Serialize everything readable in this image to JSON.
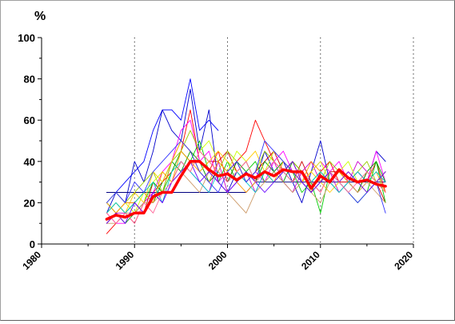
{
  "chart_data": {
    "type": "line",
    "ylabel": "%",
    "xlim": [
      1980,
      2020
    ],
    "ylim": [
      0,
      100
    ],
    "x_ticks": [
      1980,
      1990,
      2000,
      2010,
      2020
    ],
    "y_ticks": [
      0,
      20,
      40,
      60,
      80,
      100
    ],
    "vertical_gridlines_at": [
      1990,
      2000,
      2010,
      2020
    ],
    "grid": "vertical-dotted",
    "legend": "none",
    "series": [
      {
        "color": "#0000ff",
        "x": [
          1987,
          1988,
          1989,
          1990,
          1991,
          1992,
          1993,
          1994,
          1995,
          1996,
          1997,
          1998,
          1999
        ],
        "values": [
          25,
          25,
          30,
          35,
          40,
          55,
          65,
          65,
          60,
          80,
          55,
          60,
          55
        ]
      },
      {
        "color": "#0000cc",
        "x": [
          1987,
          1988,
          1989,
          1990,
          1991,
          1992,
          1993,
          1994,
          1995,
          1996,
          1997,
          1998,
          1999,
          2000,
          2001,
          2002,
          2003,
          2004,
          2005,
          2006,
          2007,
          2008,
          2009,
          2010,
          2011,
          2012,
          2013,
          2014,
          2015,
          2016,
          2017
        ],
        "values": [
          15,
          25,
          20,
          40,
          30,
          45,
          65,
          55,
          50,
          75,
          45,
          65,
          30,
          25,
          35,
          40,
          30,
          45,
          35,
          40,
          30,
          20,
          35,
          50,
          30,
          25,
          30,
          35,
          30,
          45,
          40
        ]
      },
      {
        "color": "#000080",
        "x": [
          1987,
          1988,
          1989,
          1990,
          1991,
          1992,
          1993,
          1994,
          1995,
          1996,
          1997,
          1998,
          1999,
          2000,
          2001,
          2002,
          2003,
          2004,
          2005,
          2006,
          2007,
          2008,
          2009,
          2010,
          2011,
          2012,
          2013,
          2014,
          2015,
          2016,
          2017
        ],
        "values": [
          25,
          25,
          25,
          25,
          25,
          25,
          25,
          25,
          25,
          25,
          25,
          25,
          25,
          25,
          25,
          25,
          30,
          30,
          30,
          30,
          30,
          30,
          30,
          30,
          30,
          30,
          30,
          30,
          30,
          30,
          30
        ]
      },
      {
        "color": "#ff0000",
        "x": [
          1987,
          1988,
          1989,
          1990,
          1991,
          1992,
          1993,
          1994,
          1995,
          1996,
          1997,
          1998,
          1999,
          2000,
          2001,
          2002,
          2003,
          2004,
          2005,
          2006,
          2007,
          2008,
          2009,
          2010,
          2011,
          2012,
          2013,
          2014,
          2015,
          2016,
          2017
        ],
        "values": [
          5,
          10,
          15,
          10,
          20,
          25,
          30,
          35,
          45,
          65,
          40,
          35,
          45,
          30,
          40,
          45,
          60,
          50,
          40,
          35,
          40,
          30,
          25,
          35,
          40,
          30,
          30,
          35,
          30,
          40,
          25
        ]
      },
      {
        "color": "#cc0000",
        "x": [
          1987,
          1988,
          1989,
          1990,
          1991,
          1992,
          1993,
          1994,
          1995,
          1996,
          1997,
          1998,
          1999,
          2000,
          2001,
          2002,
          2003,
          2004,
          2005,
          2006,
          2007,
          2008,
          2009,
          2010,
          2011,
          2012,
          2013,
          2014,
          2015,
          2016,
          2017
        ],
        "values": [
          10,
          15,
          20,
          20,
          15,
          30,
          25,
          40,
          50,
          45,
          35,
          40,
          40,
          45,
          35,
          30,
          35,
          40,
          45,
          35,
          30,
          40,
          30,
          25,
          35,
          35,
          30,
          25,
          35,
          30,
          20
        ]
      },
      {
        "color": "#ff00ff",
        "x": [
          1987,
          1988,
          1989,
          1990,
          1991,
          1992,
          1993,
          1994,
          1995,
          1996,
          1997,
          1998,
          1999,
          2000,
          2001,
          2002,
          2003,
          2004,
          2005,
          2006,
          2007,
          2008,
          2009,
          2010,
          2011,
          2012,
          2013,
          2014,
          2015,
          2016,
          2017
        ],
        "values": [
          15,
          10,
          10,
          15,
          20,
          25,
          35,
          40,
          55,
          60,
          40,
          45,
          30,
          35,
          40,
          30,
          35,
          30,
          40,
          45,
          35,
          30,
          35,
          40,
          35,
          40,
          30,
          35,
          30,
          45,
          30
        ]
      },
      {
        "color": "#cc00cc",
        "x": [
          1987,
          1988,
          1989,
          1990,
          1991,
          1992,
          1993,
          1994,
          1995,
          1996,
          1997,
          1998,
          1999,
          2000,
          2001,
          2002,
          2003,
          2004,
          2005,
          2006,
          2007,
          2008,
          2009,
          2010,
          2011,
          2012,
          2013,
          2014,
          2015,
          2016,
          2017
        ],
        "values": [
          10,
          15,
          15,
          20,
          15,
          25,
          20,
          30,
          40,
          35,
          30,
          25,
          40,
          25,
          30,
          35,
          25,
          35,
          40,
          30,
          25,
          35,
          40,
          30,
          35,
          25,
          30,
          40,
          35,
          30,
          35
        ]
      },
      {
        "color": "#00cc00",
        "x": [
          1987,
          1988,
          1989,
          1990,
          1991,
          1992,
          1993,
          1994,
          1995,
          1996,
          1997,
          1998,
          1999,
          2000,
          2001,
          2002,
          2003,
          2004,
          2005,
          2006,
          2007,
          2008,
          2009,
          2010,
          2011,
          2012,
          2013,
          2014,
          2015,
          2016,
          2017
        ],
        "values": [
          20,
          15,
          10,
          15,
          20,
          30,
          25,
          35,
          45,
          40,
          50,
          35,
          30,
          40,
          30,
          35,
          40,
          30,
          35,
          40,
          35,
          25,
          30,
          15,
          35,
          30,
          25,
          20,
          25,
          40,
          20
        ]
      },
      {
        "color": "#009900",
        "x": [
          1987,
          1988,
          1989,
          1990,
          1991,
          1992,
          1993,
          1994,
          1995,
          1996,
          1997,
          1998,
          1999,
          2000,
          2001,
          2002,
          2003,
          2004,
          2005,
          2006,
          2007,
          2008,
          2009,
          2010,
          2011,
          2012,
          2013,
          2014,
          2015,
          2016,
          2017
        ],
        "values": [
          15,
          20,
          15,
          20,
          25,
          20,
          30,
          40,
          35,
          45,
          40,
          30,
          35,
          30,
          40,
          35,
          30,
          40,
          35,
          30,
          40,
          35,
          30,
          35,
          30,
          35,
          30,
          25,
          35,
          40,
          30
        ]
      },
      {
        "color": "#99cc00",
        "x": [
          1987,
          1988,
          1989,
          1990,
          1991,
          1992,
          1993,
          1994,
          1995,
          1996,
          1997,
          1998,
          1999,
          2000,
          2001,
          2002,
          2003,
          2004,
          2005,
          2006,
          2007,
          2008,
          2009,
          2010,
          2011,
          2012,
          2013,
          2014,
          2015,
          2016,
          2017
        ],
        "values": [
          20,
          25,
          20,
          25,
          30,
          35,
          25,
          40,
          45,
          55,
          45,
          40,
          35,
          45,
          40,
          30,
          35,
          45,
          40,
          35,
          40,
          35,
          25,
          30,
          40,
          35,
          30,
          35,
          40,
          30,
          35
        ]
      },
      {
        "color": "#ccff00",
        "x": [
          1987,
          1988,
          1989,
          1990,
          1991,
          1992,
          1993,
          1994,
          1995,
          1996,
          1997,
          1998,
          1999,
          2000,
          2001,
          2002,
          2003,
          2004,
          2005,
          2006,
          2007,
          2008,
          2009,
          2010,
          2011,
          2012,
          2013,
          2014,
          2015,
          2016,
          2017
        ],
        "values": [
          10,
          15,
          20,
          15,
          25,
          30,
          35,
          30,
          40,
          35,
          45,
          50,
          40,
          35,
          45,
          40,
          30,
          35,
          45,
          40,
          35,
          30,
          35,
          40,
          30,
          35,
          40,
          30,
          35,
          30,
          25
        ]
      },
      {
        "color": "#ffcc00",
        "x": [
          1987,
          1988,
          1989,
          1990,
          1991,
          1992,
          1993,
          1994,
          1995,
          1996,
          1997,
          1998,
          1999,
          2000,
          2001,
          2002,
          2003,
          2004,
          2005,
          2006,
          2007,
          2008,
          2009,
          2010,
          2011,
          2012,
          2013,
          2014,
          2015,
          2016,
          2017
        ],
        "values": [
          15,
          20,
          15,
          25,
          20,
          35,
          30,
          40,
          50,
          45,
          35,
          40,
          45,
          40,
          35,
          40,
          45,
          35,
          30,
          35,
          40,
          30,
          35,
          30,
          25,
          30,
          35,
          30,
          25,
          30,
          35
        ]
      },
      {
        "color": "#ff9900",
        "x": [
          1987,
          1988,
          1989,
          1990,
          1991,
          1992,
          1993,
          1994,
          1995,
          1996,
          1997,
          1998,
          1999,
          2000,
          2001,
          2002,
          2003,
          2004,
          2005,
          2006,
          2007,
          2008,
          2009,
          2010,
          2011,
          2012,
          2013,
          2014,
          2015,
          2016,
          2017
        ],
        "values": [
          20,
          15,
          20,
          20,
          25,
          20,
          35,
          30,
          45,
          40,
          35,
          30,
          40,
          35,
          30,
          25,
          30,
          35,
          30,
          40,
          35,
          30,
          40,
          35,
          30,
          35,
          30,
          25,
          30,
          35,
          25
        ]
      },
      {
        "color": "#cc9966",
        "x": [
          1987,
          1988,
          1989,
          1990,
          1991,
          1992,
          1993,
          1994,
          1995,
          1996,
          1997,
          1998,
          1999,
          2000,
          2001,
          2002,
          2003,
          2004,
          2005,
          2006,
          2007,
          2008,
          2009,
          2010,
          2011,
          2012,
          2013,
          2014,
          2015,
          2016,
          2017
        ],
        "values": [
          10,
          10,
          15,
          15,
          20,
          20,
          25,
          30,
          35,
          30,
          25,
          35,
          30,
          25,
          20,
          15,
          25,
          30,
          35,
          30,
          25,
          30,
          25,
          20,
          30,
          25,
          30,
          25,
          30,
          25,
          20
        ]
      },
      {
        "color": "#00cccc",
        "x": [
          1987,
          1988,
          1989,
          1990,
          1991,
          1992,
          1993,
          1994,
          1995,
          1996,
          1997,
          1998,
          1999,
          2000,
          2001,
          2002,
          2003,
          2004,
          2005,
          2006,
          2007,
          2008,
          2009,
          2010,
          2011,
          2012,
          2013,
          2014,
          2015,
          2016,
          2017
        ],
        "values": [
          15,
          20,
          15,
          20,
          25,
          30,
          20,
          35,
          40,
          35,
          30,
          25,
          35,
          30,
          35,
          30,
          25,
          35,
          30,
          35,
          30,
          35,
          30,
          35,
          30,
          25,
          30,
          35,
          30,
          35,
          30
        ]
      },
      {
        "color": "#3333ff",
        "x": [
          1987,
          1988,
          1989,
          1990,
          1991,
          1992,
          1993,
          1994,
          1995,
          1996,
          1997,
          1998,
          1999,
          2000,
          2001,
          2002,
          2003,
          2004,
          2005,
          2006,
          2007,
          2008,
          2009,
          2010,
          2011,
          2012,
          2013,
          2014,
          2015,
          2016,
          2017
        ],
        "values": [
          20,
          25,
          20,
          30,
          25,
          35,
          40,
          45,
          50,
          45,
          35,
          30,
          25,
          35,
          40,
          30,
          35,
          50,
          45,
          40,
          35,
          30,
          25,
          30,
          35,
          30,
          25,
          20,
          25,
          30,
          15
        ]
      },
      {
        "color": "#6600ff",
        "x": [
          1987,
          1988,
          1989,
          1990,
          1991,
          1992,
          1993,
          1994,
          1995,
          1996,
          1997,
          1998,
          1999,
          2000,
          2001,
          2002,
          2003,
          2004,
          2005,
          2006,
          2007,
          2008,
          2009,
          2010,
          2011,
          2012,
          2013,
          2014,
          2015,
          2016,
          2017
        ],
        "values": [
          10,
          15,
          10,
          20,
          15,
          25,
          20,
          30,
          35,
          40,
          30,
          35,
          30,
          25,
          30,
          35,
          30,
          25,
          30,
          35,
          40,
          30,
          25,
          30,
          35,
          30,
          35,
          30,
          25,
          30,
          35
        ]
      },
      {
        "color": "#ff6699",
        "x": [
          1987,
          1988,
          1989,
          1990,
          1991,
          1992,
          1993,
          1994,
          1995,
          1996,
          1997,
          1998,
          1999,
          2000,
          2001,
          2002,
          2003,
          2004,
          2005,
          2006,
          2007,
          2008,
          2009,
          2010,
          2011,
          2012,
          2013,
          2014,
          2015,
          2016,
          2017
        ],
        "values": [
          15,
          10,
          15,
          10,
          20,
          15,
          25,
          30,
          40,
          35,
          45,
          40,
          35,
          30,
          35,
          40,
          30,
          35,
          40,
          35,
          30,
          35,
          30,
          25,
          35,
          30,
          25,
          30,
          35,
          30,
          25
        ]
      },
      {
        "color": "#ff0000",
        "width": 3.5,
        "x": [
          1987,
          1988,
          1989,
          1990,
          1991,
          1992,
          1993,
          1994,
          1995,
          1996,
          1997,
          1998,
          1999,
          2000,
          2001,
          2002,
          2003,
          2004,
          2005,
          2006,
          2007,
          2008,
          2009,
          2010,
          2011,
          2012,
          2013,
          2014,
          2015,
          2016,
          2017
        ],
        "values": [
          12,
          14,
          13,
          15,
          15,
          23,
          25,
          25,
          33,
          40,
          40,
          36,
          33,
          34,
          31,
          34,
          32,
          35,
          33,
          36,
          35,
          35,
          27,
          33,
          30,
          36,
          32,
          30,
          31,
          29,
          28
        ]
      }
    ]
  }
}
